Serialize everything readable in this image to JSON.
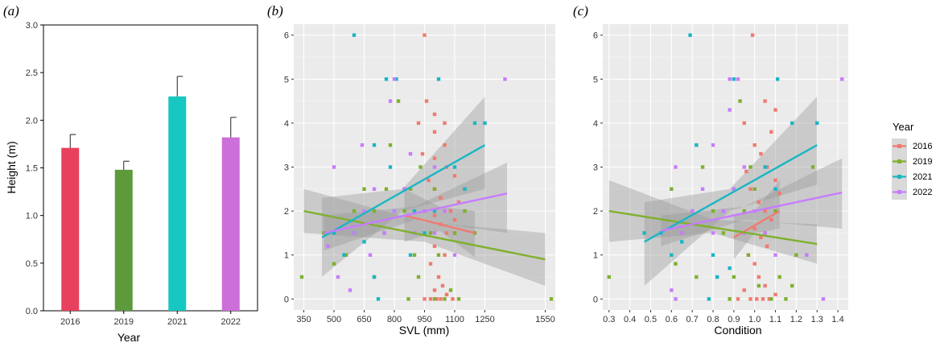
{
  "chart_data": [
    {
      "panel": "(a)",
      "type": "bar",
      "xlabel": "Year",
      "ylabel": "Height (m)",
      "ylim": [
        0,
        3.0
      ],
      "yticks": [
        "0.0",
        "0.5",
        "1.0",
        "1.5",
        "2.0",
        "2.5",
        "3.0"
      ],
      "categories": [
        "2016",
        "2019",
        "2021",
        "2022"
      ],
      "values": [
        1.71,
        1.48,
        2.25,
        1.82
      ],
      "errors": [
        0.14,
        0.09,
        0.21,
        0.21
      ],
      "colors": [
        "#e8415e",
        "#5d9a3c",
        "#17c7c1",
        "#cc6fd8"
      ]
    },
    {
      "panel": "(b)",
      "type": "scatter",
      "xlabel": "SVL (mm)",
      "xlim": [
        300,
        1600
      ],
      "xticks": [
        350,
        500,
        650,
        800,
        950,
        1100,
        1250,
        1550
      ],
      "ylim": [
        -0.25,
        6.25
      ],
      "yticks": [
        0,
        1,
        2,
        3,
        4,
        5,
        6
      ],
      "grid": true,
      "series": [
        {
          "name": "2016",
          "color": "#f07a70",
          "fit": {
            "x0": 850,
            "x1": 1200,
            "y0": 1.9,
            "y1": 1.5,
            "ci": [
              [
                850,
                1.3,
                2.5
              ],
              [
                1025,
                1.55,
                2.1
              ],
              [
                1200,
                0.95,
                2.0
              ]
            ]
          },
          "points": [
            [
              950,
              6.0
            ],
            [
              960,
              4.5
            ],
            [
              920,
              4.0
            ],
            [
              1000,
              4.2
            ],
            [
              1050,
              4.0
            ],
            [
              1000,
              3.8
            ],
            [
              1050,
              3.5
            ],
            [
              1000,
              3.2
            ],
            [
              1060,
              3.0
            ],
            [
              1100,
              2.8
            ],
            [
              1000,
              2.5
            ],
            [
              1030,
              2.3
            ],
            [
              1050,
              2.0
            ],
            [
              1080,
              2.0
            ],
            [
              1000,
              1.9
            ],
            [
              1030,
              1.7
            ],
            [
              1060,
              1.5
            ],
            [
              1100,
              1.5
            ],
            [
              1000,
              1.2
            ],
            [
              1050,
              1.0
            ],
            [
              980,
              0.8
            ],
            [
              1020,
              0.5
            ],
            [
              1040,
              0.3
            ],
            [
              1000,
              0.2
            ],
            [
              1060,
              0.1
            ],
            [
              1090,
              0.0
            ],
            [
              950,
              0.0
            ],
            [
              1010,
              0.0
            ],
            [
              1030,
              0.0
            ],
            [
              980,
              0.0
            ],
            [
              1100,
              1.8
            ],
            [
              1120,
              2.2
            ],
            [
              970,
              2.7
            ],
            [
              940,
              3.3
            ]
          ]
        },
        {
          "name": "2019",
          "color": "#7fb02d",
          "fit": {
            "x0": 350,
            "x1": 1550,
            "y0": 2.0,
            "y1": 0.9,
            "ci": [
              [
                350,
                1.5,
                2.5
              ],
              [
                950,
                1.3,
                1.75
              ],
              [
                1550,
                0.3,
                1.5
              ]
            ]
          },
          "points": [
            [
              340,
              0.5
            ],
            [
              450,
              1.5
            ],
            [
              500,
              0.8
            ],
            [
              560,
              1.0
            ],
            [
              600,
              2.0
            ],
            [
              650,
              2.5
            ],
            [
              700,
              2.0
            ],
            [
              750,
              1.5
            ],
            [
              780,
              3.5
            ],
            [
              820,
              4.5
            ],
            [
              850,
              2.0
            ],
            [
              880,
              2.5
            ],
            [
              900,
              1.0
            ],
            [
              920,
              0.5
            ],
            [
              950,
              2.0
            ],
            [
              980,
              1.5
            ],
            [
              1000,
              2.5
            ],
            [
              1020,
              1.0
            ],
            [
              1050,
              0.0
            ],
            [
              1080,
              0.2
            ],
            [
              1100,
              1.5
            ],
            [
              1120,
              0.0
            ],
            [
              1150,
              2.0
            ],
            [
              1200,
              1.5
            ],
            [
              1580,
              0.0
            ],
            [
              700,
              0.5
            ],
            [
              870,
              0.0
            ],
            [
              930,
              3.0
            ],
            [
              760,
              2.5
            ],
            [
              1000,
              0.0
            ]
          ]
        },
        {
          "name": "2021",
          "color": "#1ab6c4",
          "fit": {
            "x0": 440,
            "x1": 1250,
            "y0": 1.4,
            "y1": 3.5,
            "ci": [
              [
                440,
                0.5,
                2.3
              ],
              [
                840,
                2.0,
                2.5
              ],
              [
                1250,
                2.5,
                4.6
              ]
            ]
          },
          "points": [
            [
              600,
              6.0
            ],
            [
              760,
              5.0
            ],
            [
              810,
              5.0
            ],
            [
              1020,
              5.0
            ],
            [
              1200,
              4.0
            ],
            [
              1250,
              4.0
            ],
            [
              700,
              3.5
            ],
            [
              500,
              1.5
            ],
            [
              550,
              1.0
            ],
            [
              600,
              1.5
            ],
            [
              650,
              1.3
            ],
            [
              700,
              0.5
            ],
            [
              720,
              0.0
            ],
            [
              800,
              2.0
            ],
            [
              850,
              2.5
            ],
            [
              900,
              2.0
            ],
            [
              950,
              1.5
            ],
            [
              1000,
              2.0
            ],
            [
              1100,
              3.0
            ],
            [
              1150,
              2.5
            ],
            [
              780,
              3.0
            ],
            [
              880,
              1.0
            ]
          ]
        },
        {
          "name": "2022",
          "color": "#c77cff",
          "fit": {
            "x0": 450,
            "x1": 1360,
            "y0": 1.5,
            "y1": 2.4,
            "ci": [
              [
                450,
                1.1,
                1.9
              ],
              [
                900,
                1.8,
                2.1
              ],
              [
                1360,
                1.5,
                3.1
              ]
            ]
          },
          "points": [
            [
              1350,
              5.0
            ],
            [
              800,
              5.0
            ],
            [
              780,
              4.5
            ],
            [
              640,
              3.5
            ],
            [
              500,
              3.0
            ],
            [
              470,
              1.2
            ],
            [
              520,
              0.5
            ],
            [
              600,
              1.5
            ],
            [
              650,
              2.0
            ],
            [
              700,
              2.5
            ],
            [
              750,
              1.5
            ],
            [
              800,
              2.0
            ],
            [
              850,
              2.5
            ],
            [
              900,
              1.5
            ],
            [
              950,
              2.0
            ],
            [
              1000,
              1.5
            ],
            [
              1050,
              2.0
            ],
            [
              1100,
              1.0
            ],
            [
              580,
              0.2
            ],
            [
              1000,
              3.0
            ],
            [
              880,
              3.3
            ],
            [
              680,
              1.0
            ]
          ]
        }
      ]
    },
    {
      "panel": "(c)",
      "type": "scatter",
      "xlabel": "Condition",
      "xlim": [
        0.27,
        1.45
      ],
      "xticks": [
        "0.3",
        "0.4",
        "0.5",
        "0.6",
        "0.7",
        "0.8",
        "0.9",
        "1.0",
        "1.1",
        "1.2",
        "1.3",
        "1.4"
      ],
      "ylim": [
        -0.25,
        6.25
      ],
      "yticks": [
        0,
        1,
        2,
        3,
        4,
        5,
        6
      ],
      "grid": true,
      "series": [
        {
          "name": "2016",
          "color": "#f07a70",
          "fit": {
            "x0": 0.9,
            "x1": 1.12,
            "y0": 1.4,
            "y1": 2.0,
            "ci": [
              [
                0.9,
                0.9,
                1.9
              ],
              [
                1.0,
                1.5,
                2.0
              ],
              [
                1.12,
                1.6,
                2.7
              ]
            ]
          },
          "points": [
            [
              0.99,
              6.0
            ],
            [
              1.05,
              4.5
            ],
            [
              0.95,
              4.0
            ],
            [
              1.1,
              4.3
            ],
            [
              1.08,
              3.8
            ],
            [
              1.0,
              3.5
            ],
            [
              1.03,
              3.3
            ],
            [
              1.06,
              3.0
            ],
            [
              1.1,
              2.7
            ],
            [
              0.98,
              2.5
            ],
            [
              1.02,
              2.2
            ],
            [
              1.05,
              2.0
            ],
            [
              1.08,
              1.8
            ],
            [
              1.0,
              1.6
            ],
            [
              1.03,
              1.4
            ],
            [
              1.06,
              1.2
            ],
            [
              0.97,
              1.0
            ],
            [
              1.0,
              0.8
            ],
            [
              1.02,
              0.5
            ],
            [
              1.05,
              0.3
            ],
            [
              0.95,
              0.2
            ],
            [
              0.98,
              0.0
            ],
            [
              1.01,
              0.0
            ],
            [
              1.04,
              0.0
            ],
            [
              1.07,
              0.0
            ],
            [
              1.1,
              0.1
            ],
            [
              0.92,
              0.0
            ],
            [
              1.12,
              2.4
            ],
            [
              0.96,
              2.9
            ]
          ]
        },
        {
          "name": "2019",
          "color": "#7fb02d",
          "fit": {
            "x0": 0.3,
            "x1": 1.3,
            "y0": 2.0,
            "y1": 1.25,
            "ci": [
              [
                0.3,
                1.3,
                2.7
              ],
              [
                0.8,
                1.5,
                1.8
              ],
              [
                1.3,
                0.8,
                1.7
              ]
            ]
          },
          "points": [
            [
              0.3,
              0.5
            ],
            [
              0.6,
              2.5
            ],
            [
              0.62,
              0.8
            ],
            [
              0.65,
              1.5
            ],
            [
              0.7,
              2.0
            ],
            [
              0.75,
              3.0
            ],
            [
              0.8,
              2.0
            ],
            [
              0.85,
              1.5
            ],
            [
              0.9,
              0.5
            ],
            [
              0.93,
              4.5
            ],
            [
              0.95,
              2.0
            ],
            [
              0.97,
              1.0
            ],
            [
              1.0,
              2.5
            ],
            [
              1.02,
              0.3
            ],
            [
              1.05,
              1.5
            ],
            [
              1.08,
              0.0
            ],
            [
              1.1,
              2.0
            ],
            [
              1.12,
              0.5
            ],
            [
              1.15,
              0.0
            ],
            [
              1.2,
              1.0
            ],
            [
              1.28,
              3.0
            ],
            [
              0.88,
              0.0
            ],
            [
              0.72,
              0.5
            ],
            [
              0.98,
              3.0
            ],
            [
              1.18,
              0.3
            ]
          ]
        },
        {
          "name": "2021",
          "color": "#1ab6c4",
          "fit": {
            "x0": 0.47,
            "x1": 1.3,
            "y0": 1.3,
            "y1": 3.5,
            "ci": [
              [
                0.47,
                0.3,
                2.2
              ],
              [
                0.88,
                2.0,
                2.5
              ],
              [
                1.3,
                2.6,
                4.6
              ]
            ]
          },
          "points": [
            [
              0.69,
              6.0
            ],
            [
              0.9,
              5.0
            ],
            [
              1.11,
              5.0
            ],
            [
              1.3,
              4.0
            ],
            [
              1.18,
              4.0
            ],
            [
              0.72,
              3.5
            ],
            [
              0.47,
              1.5
            ],
            [
              0.55,
              1.5
            ],
            [
              0.6,
              1.0
            ],
            [
              0.65,
              1.3
            ],
            [
              0.78,
              0.0
            ],
            [
              0.82,
              0.5
            ],
            [
              0.85,
              2.0
            ],
            [
              0.9,
              2.5
            ],
            [
              0.95,
              1.5
            ],
            [
              1.0,
              2.0
            ],
            [
              1.05,
              3.0
            ],
            [
              1.1,
              2.5
            ],
            [
              0.8,
              1.0
            ],
            [
              0.88,
              0.7
            ]
          ]
        },
        {
          "name": "2022",
          "color": "#c77cff",
          "fit": {
            "x0": 0.55,
            "x1": 1.42,
            "y0": 1.55,
            "y1": 2.42,
            "ci": [
              [
                0.55,
                1.2,
                1.9
              ],
              [
                0.95,
                1.8,
                2.1
              ],
              [
                1.42,
                1.6,
                3.2
              ]
            ]
          },
          "points": [
            [
              1.42,
              5.0
            ],
            [
              0.88,
              5.0
            ],
            [
              0.92,
              5.0
            ],
            [
              0.88,
              4.3
            ],
            [
              0.8,
              3.5
            ],
            [
              0.62,
              3.0
            ],
            [
              0.6,
              0.2
            ],
            [
              0.62,
              0.0
            ],
            [
              0.65,
              1.5
            ],
            [
              0.7,
              2.0
            ],
            [
              0.75,
              2.5
            ],
            [
              0.8,
              1.5
            ],
            [
              0.85,
              2.0
            ],
            [
              0.9,
              2.5
            ],
            [
              0.95,
              1.5
            ],
            [
              1.0,
              2.0
            ],
            [
              1.05,
              1.5
            ],
            [
              1.1,
              1.0
            ],
            [
              1.33,
              0.0
            ],
            [
              0.95,
              3.0
            ],
            [
              1.25,
              1.0
            ]
          ]
        }
      ]
    }
  ],
  "legend": {
    "title": "Year",
    "items": [
      {
        "label": "2016",
        "color": "#f07a70"
      },
      {
        "label": "2019",
        "color": "#7fb02d"
      },
      {
        "label": "2021",
        "color": "#1ab6c4"
      },
      {
        "label": "2022",
        "color": "#c77cff"
      }
    ]
  }
}
